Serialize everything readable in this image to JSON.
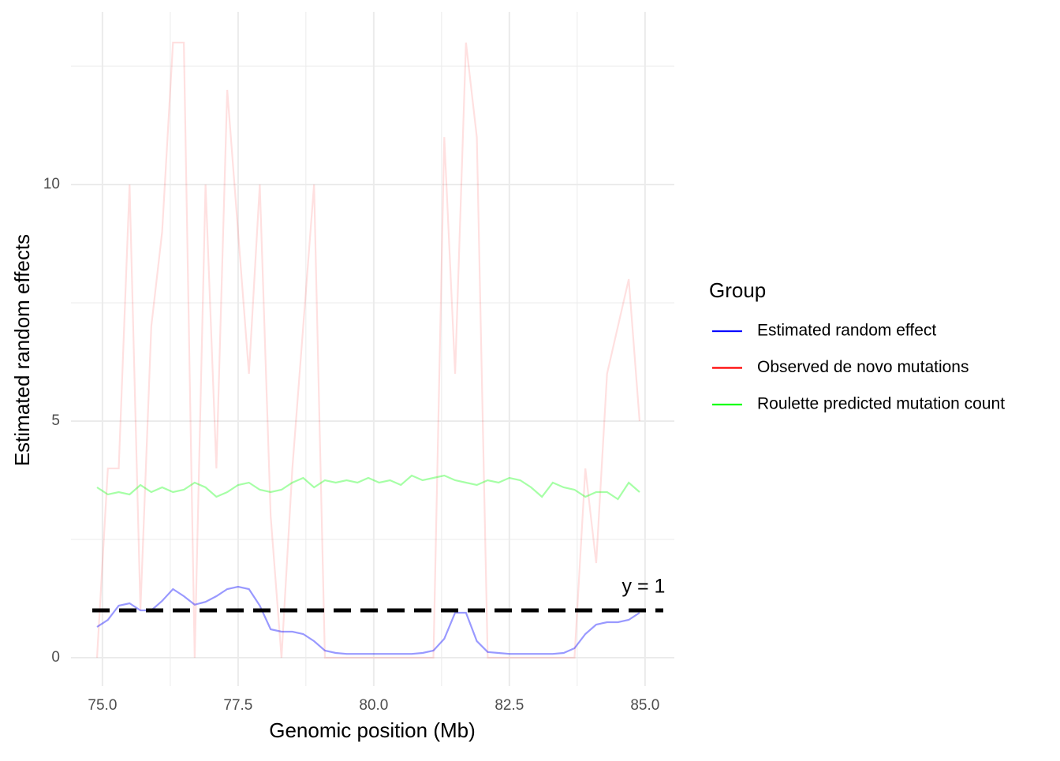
{
  "chart_data": {
    "type": "line",
    "x_label": "Genomic position (Mb)",
    "y_label": "Estimated random effects",
    "x": [
      74.9,
      75.1,
      75.3,
      75.5,
      75.7,
      75.9,
      76.1,
      76.3,
      76.5,
      76.7,
      76.9,
      77.1,
      77.3,
      77.5,
      77.7,
      77.9,
      78.1,
      78.3,
      78.5,
      78.7,
      78.9,
      79.1,
      79.3,
      79.5,
      79.7,
      79.9,
      80.1,
      80.3,
      80.5,
      80.7,
      80.9,
      81.1,
      81.3,
      81.5,
      81.7,
      81.9,
      82.1,
      82.3,
      82.5,
      82.7,
      82.9,
      83.1,
      83.3,
      83.5,
      83.7,
      83.9,
      84.1,
      84.3,
      84.5,
      84.7,
      84.9
    ],
    "series": [
      {
        "name": "Estimated random effect",
        "color": "#0000ff",
        "alpha": 0.4,
        "values": [
          0.65,
          0.8,
          1.1,
          1.15,
          1.0,
          1.0,
          1.2,
          1.45,
          1.3,
          1.12,
          1.18,
          1.3,
          1.45,
          1.5,
          1.45,
          1.1,
          0.6,
          0.55,
          0.55,
          0.5,
          0.35,
          0.15,
          0.1,
          0.08,
          0.08,
          0.08,
          0.08,
          0.08,
          0.08,
          0.08,
          0.1,
          0.15,
          0.4,
          0.95,
          0.95,
          0.35,
          0.12,
          0.1,
          0.08,
          0.08,
          0.08,
          0.08,
          0.08,
          0.1,
          0.2,
          0.5,
          0.7,
          0.75,
          0.75,
          0.8,
          0.95
        ]
      },
      {
        "name": "Observed de novo mutations",
        "color": "#ff0000",
        "alpha": 0.12,
        "values": [
          0,
          4,
          4,
          10,
          1,
          7,
          9,
          13,
          13,
          0,
          10,
          4,
          12,
          9,
          6,
          10,
          3,
          0,
          4,
          7,
          10,
          0,
          0,
          0,
          0,
          0,
          0,
          0,
          0,
          0,
          0,
          0,
          11,
          6,
          13,
          11,
          0,
          0,
          0,
          0,
          0,
          0,
          0,
          0,
          0,
          4,
          2,
          6,
          7,
          8,
          5
        ]
      },
      {
        "name": "Roulette predicted mutation count",
        "color": "#00ff00",
        "alpha": 0.35,
        "values": [
          3.6,
          3.45,
          3.5,
          3.45,
          3.65,
          3.5,
          3.6,
          3.5,
          3.55,
          3.7,
          3.6,
          3.4,
          3.5,
          3.65,
          3.7,
          3.55,
          3.5,
          3.55,
          3.7,
          3.8,
          3.6,
          3.75,
          3.7,
          3.75,
          3.7,
          3.8,
          3.7,
          3.75,
          3.65,
          3.85,
          3.75,
          3.8,
          3.85,
          3.75,
          3.7,
          3.65,
          3.75,
          3.7,
          3.8,
          3.75,
          3.6,
          3.4,
          3.7,
          3.6,
          3.55,
          3.4,
          3.5,
          3.5,
          3.35,
          3.7,
          3.5
        ]
      }
    ],
    "hline": {
      "y": 1,
      "label": "y = 1",
      "color": "#000000"
    },
    "legend_title": "Group",
    "xlim": [
      74.42,
      85.54
    ],
    "ylim": [
      -0.6,
      13.65
    ],
    "xticks": [
      {
        "value": 75,
        "label": "75.0"
      },
      {
        "value": 77.5,
        "label": "77.5"
      },
      {
        "value": 80,
        "label": "80.0"
      },
      {
        "value": 82.5,
        "label": "82.5"
      },
      {
        "value": 85,
        "label": "85.0"
      }
    ],
    "yticks": [
      0,
      5,
      10
    ],
    "grid": true,
    "legend": "right"
  }
}
